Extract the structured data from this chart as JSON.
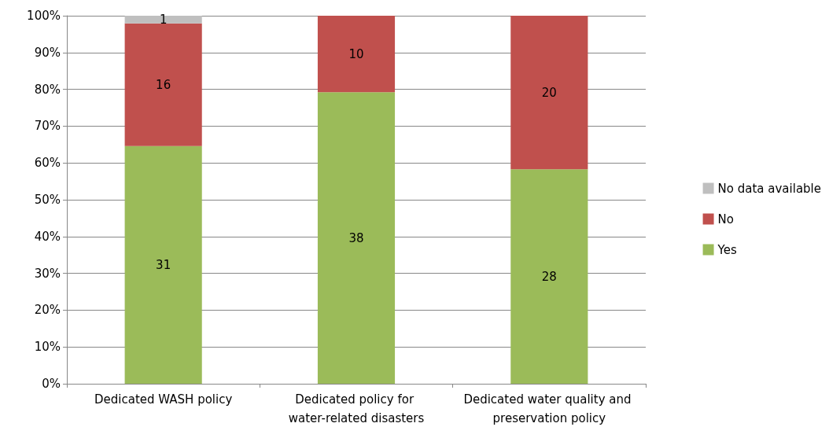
{
  "chart_data": {
    "type": "bar",
    "stacked": true,
    "categories": [
      "Dedicated WASH policy",
      "Dedicated policy for water-related disasters",
      "Dedicated water quality and preservation policy"
    ],
    "series": [
      {
        "name": "Yes",
        "color": "#9bbb59",
        "values": [
          64.6,
          79.2,
          58.3
        ]
      },
      {
        "name": "No",
        "color": "#c0504d",
        "values": [
          33.3,
          20.8,
          41.7
        ]
      },
      {
        "name": "No data available",
        "color": "#bfbfbf",
        "values": [
          2.1,
          null,
          null
        ]
      }
    ],
    "annotations": [
      "31",
      "16",
      "1",
      "38",
      "10",
      "28",
      "20"
    ],
    "ylim": [
      0,
      100
    ],
    "yticks": [
      {
        "value": 0,
        "label": "0%"
      },
      {
        "value": 10,
        "label": "10%"
      },
      {
        "value": 20,
        "label": "20%"
      },
      {
        "value": 30,
        "label": "30%"
      },
      {
        "value": 40,
        "label": "40%"
      },
      {
        "value": 50,
        "label": "50%"
      },
      {
        "value": 60,
        "label": "60%"
      },
      {
        "value": 70,
        "label": "70%"
      },
      {
        "value": 80,
        "label": "80%"
      },
      {
        "value": 90,
        "label": "90%"
      },
      {
        "value": 100,
        "label": "100%"
      }
    ],
    "grid": "y",
    "legend": "right"
  }
}
